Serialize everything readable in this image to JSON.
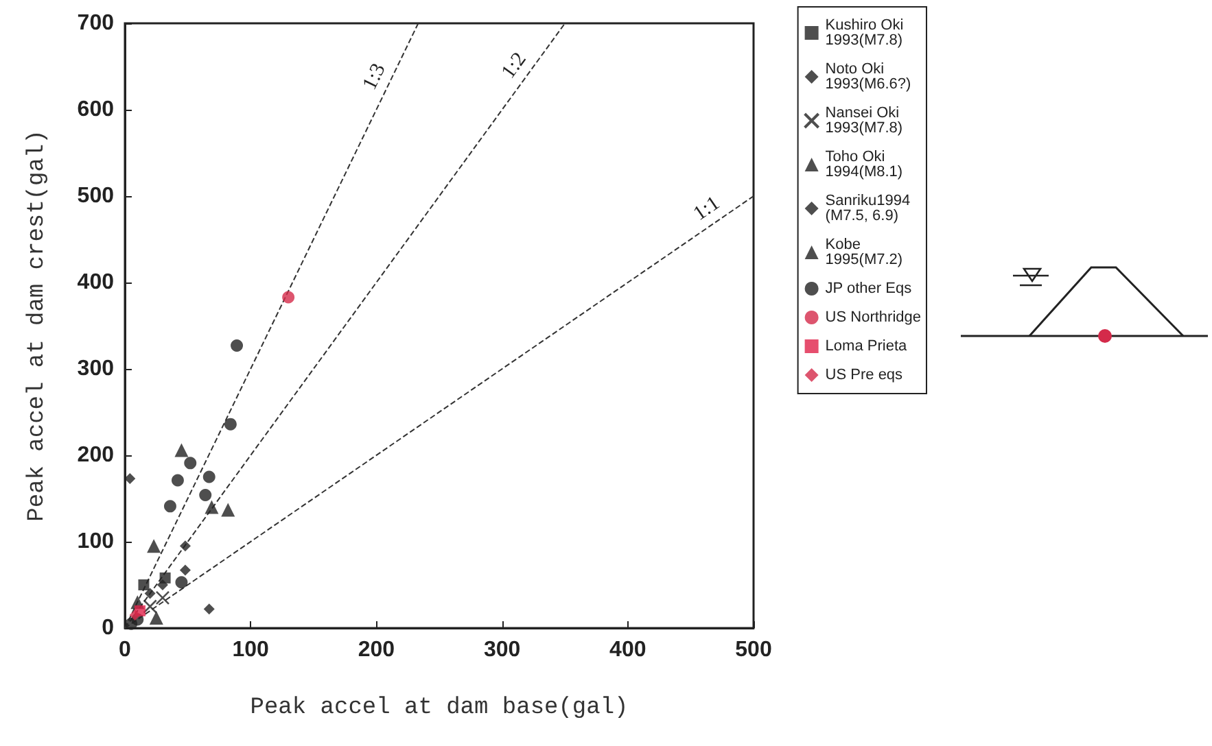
{
  "chart_data": {
    "type": "scatter",
    "xlabel": "Peak accel at dam base(gal)",
    "ylabel": "Peak accel at dam crest(gal)",
    "xlim": [
      0,
      500
    ],
    "ylim": [
      0,
      700
    ],
    "xticks": [
      0,
      100,
      200,
      300,
      400,
      500
    ],
    "yticks": [
      0,
      100,
      200,
      300,
      400,
      500,
      600,
      700
    ],
    "grid": false,
    "legend": "right",
    "annotations": [
      {
        "text": "1:3",
        "x": 210,
        "y": 630
      },
      {
        "text": "1:2",
        "x": 320,
        "y": 640
      },
      {
        "text": "1:1",
        "x": 470,
        "y": 470
      }
    ],
    "series": [
      {
        "name": "Kushiro Oki 1993(M7.8)",
        "color": "#222222",
        "marker": "square",
        "x": [
          32,
          15
        ],
        "values": [
          58,
          50
        ]
      },
      {
        "name": "Noto Oki 1993(M6.6?)",
        "color": "#222222",
        "marker": "diamond",
        "x": [
          4,
          67
        ],
        "values": [
          173,
          22
        ]
      },
      {
        "name": "Nansei Oki 1993(M7.8)",
        "color": "#222222",
        "marker": "cross",
        "x": [
          30,
          20
        ],
        "values": [
          35,
          25
        ]
      },
      {
        "name": "Toho Oki 1994(M8.1)",
        "color": "#222222",
        "marker": "triangle",
        "x": [
          25
        ],
        "values": [
          12
        ]
      },
      {
        "name": "Sanriku1994 (M7.5, 6.9)",
        "color": "#222222",
        "marker": "diamond",
        "x": [
          48,
          48,
          20,
          30
        ],
        "values": [
          95,
          67,
          40,
          50
        ]
      },
      {
        "name": "Kobe 1995(M7.2)",
        "color": "#222222",
        "marker": "triangle",
        "x": [
          45,
          69,
          82,
          23,
          10
        ],
        "values": [
          206,
          140,
          137,
          95,
          30
        ]
      },
      {
        "name": "JP other Eqs",
        "color": "#222222",
        "marker": "circle",
        "x": [
          89,
          84,
          52,
          42,
          67,
          64,
          36,
          45,
          10,
          5
        ],
        "values": [
          327,
          236,
          191,
          171,
          175,
          154,
          141,
          53,
          10,
          5
        ]
      },
      {
        "name": "US Northridge",
        "color": "#d42a4a",
        "marker": "circle",
        "x": [
          130
        ],
        "values": [
          383
        ]
      },
      {
        "name": "Loma Prieta",
        "color": "#e0224a",
        "marker": "square",
        "x": [
          12
        ],
        "values": [
          20
        ]
      },
      {
        "name": "US Pre eqs",
        "color": "#d42a4a",
        "marker": "diamond",
        "x": [
          8
        ],
        "values": [
          15
        ]
      },
      {
        "type": "line",
        "color": "#333333",
        "marker": "none",
        "line_style": "dashed",
        "x": [
          0,
          233.3
        ],
        "values": [
          0,
          700
        ]
      },
      {
        "type": "line",
        "color": "#333333",
        "marker": "none",
        "line_style": "dashed",
        "x": [
          0,
          350
        ],
        "values": [
          0,
          700
        ]
      },
      {
        "type": "line",
        "color": "#333333",
        "marker": "none",
        "line_style": "dashed",
        "x": [
          0,
          500
        ],
        "values": [
          0,
          500
        ]
      }
    ]
  }
}
